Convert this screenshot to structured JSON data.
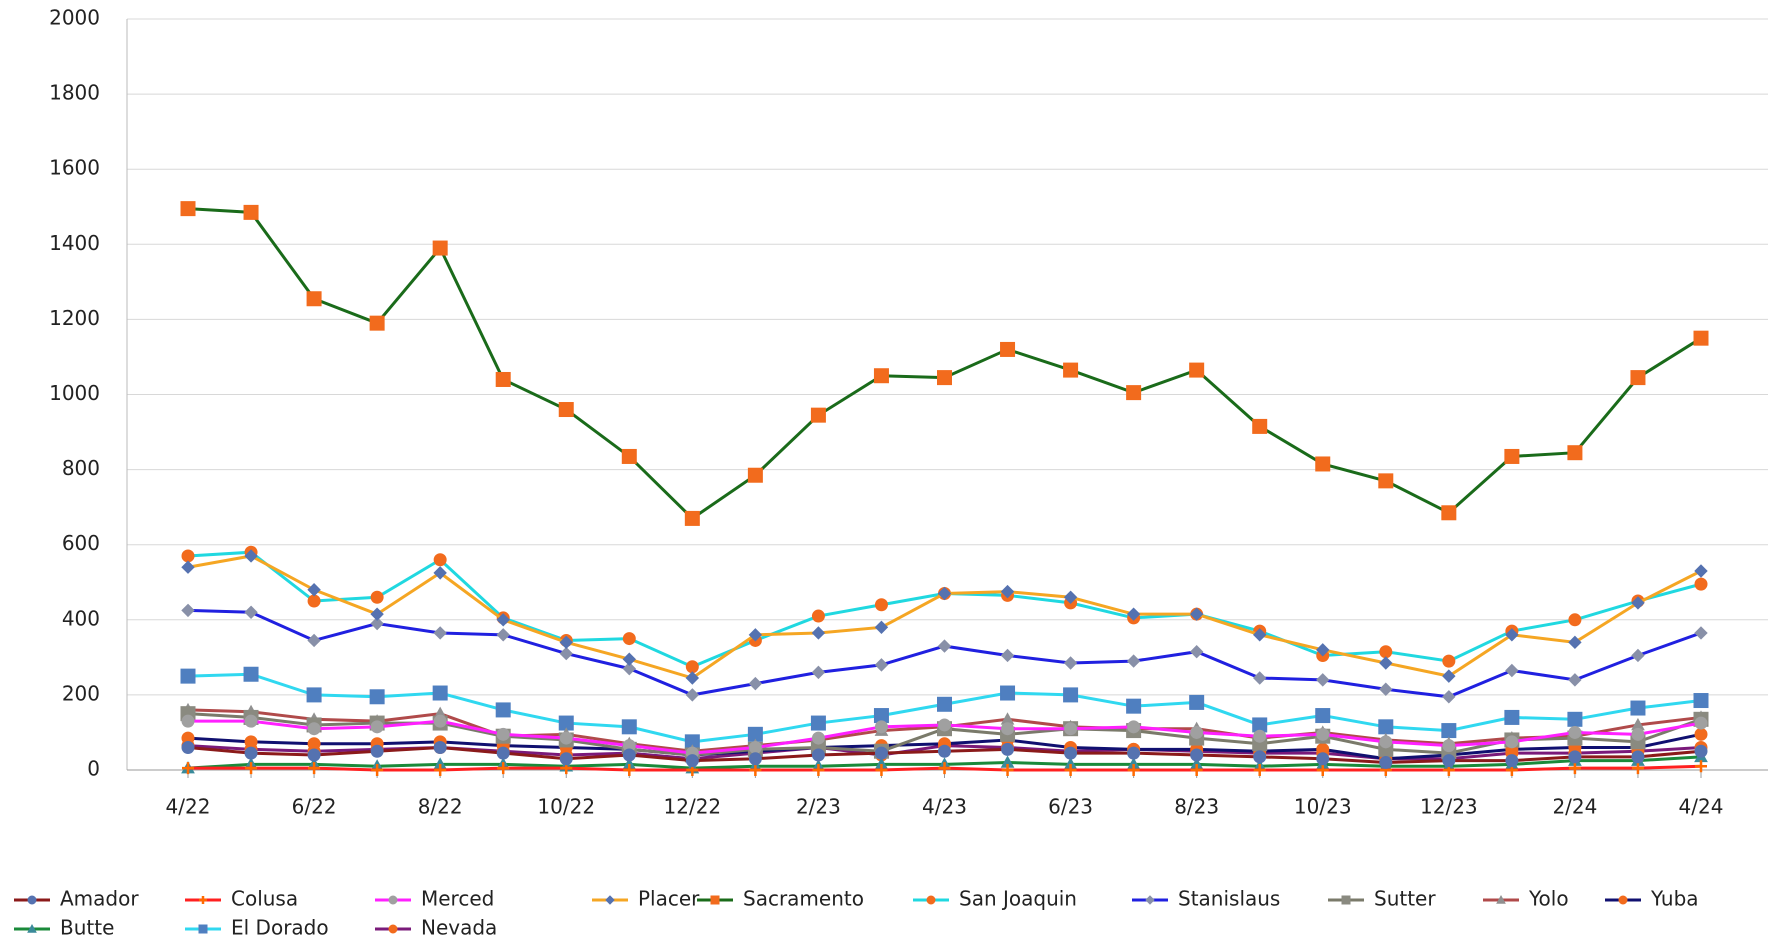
{
  "chart_data": {
    "type": "line",
    "categories": [
      "4/22",
      null,
      "6/22",
      null,
      "8/22",
      null,
      "10/22",
      null,
      "12/22",
      null,
      "2/23",
      null,
      "4/23",
      null,
      "6/23",
      null,
      "8/23",
      null,
      "10/23",
      null,
      "12/23",
      null,
      "2/24",
      null,
      "4/24"
    ],
    "ylim": [
      0,
      2000
    ],
    "yticks": [
      0,
      200,
      400,
      600,
      800,
      1000,
      1200,
      1400,
      1600,
      1800,
      2000
    ],
    "grid": true,
    "legend": "bottom",
    "series": [
      {
        "name": "Amador",
        "color": "#8b1a1a",
        "marker_color": "#5572b0",
        "marker": "circle",
        "values": [
          60,
          45,
          40,
          50,
          60,
          45,
          30,
          40,
          25,
          30,
          40,
          45,
          50,
          55,
          45,
          45,
          40,
          35,
          30,
          20,
          25,
          25,
          35,
          35,
          50
        ]
      },
      {
        "name": "Colusa",
        "color": "#ff2020",
        "marker_color": "#ff6a00",
        "marker": "plus",
        "values": [
          5,
          5,
          5,
          0,
          0,
          5,
          5,
          0,
          0,
          0,
          0,
          0,
          5,
          0,
          0,
          0,
          0,
          0,
          0,
          0,
          0,
          0,
          5,
          5,
          10
        ]
      },
      {
        "name": "Merced",
        "color": "#ff20ff",
        "marker_color": "#a0a0a0",
        "marker": "circle",
        "values": [
          130,
          130,
          110,
          115,
          130,
          95,
          85,
          65,
          45,
          60,
          85,
          115,
          120,
          110,
          110,
          115,
          100,
          90,
          95,
          75,
          65,
          75,
          100,
          95,
          125
        ]
      },
      {
        "name": "Placer",
        "color": "#f5a623",
        "marker_color": "#5572b0",
        "marker": "diamond",
        "values": [
          540,
          570,
          480,
          415,
          525,
          400,
          340,
          295,
          245,
          360,
          365,
          380,
          470,
          475,
          460,
          415,
          415,
          360,
          320,
          285,
          250,
          360,
          340,
          445,
          530
        ]
      },
      {
        "name": "Sacramento",
        "color": "#1a6b1a",
        "marker_color": "#f26b1d",
        "marker": "square",
        "values": [
          1495,
          1485,
          1255,
          1190,
          1390,
          1040,
          960,
          835,
          670,
          785,
          945,
          1050,
          1045,
          1120,
          1065,
          1005,
          1065,
          915,
          815,
          770,
          685,
          835,
          845,
          1045,
          1150
        ]
      },
      {
        "name": "San Joaquin",
        "color": "#20d8e0",
        "marker_color": "#f26b1d",
        "marker": "circle",
        "values": [
          570,
          580,
          450,
          460,
          560,
          405,
          345,
          350,
          275,
          345,
          410,
          440,
          470,
          465,
          445,
          405,
          415,
          370,
          305,
          315,
          290,
          370,
          400,
          450,
          495
        ]
      },
      {
        "name": "Stanislaus",
        "color": "#2020e0",
        "marker_color": "#8890a8",
        "marker": "diamond",
        "values": [
          425,
          420,
          345,
          390,
          365,
          360,
          310,
          270,
          200,
          230,
          260,
          280,
          330,
          305,
          285,
          290,
          315,
          245,
          240,
          215,
          195,
          265,
          240,
          305,
          365
        ]
      },
      {
        "name": "Sutter",
        "color": "#7a7a6a",
        "marker_color": "#8a8a80",
        "marker": "square",
        "values": [
          150,
          140,
          120,
          125,
          125,
          90,
          80,
          55,
          40,
          55,
          60,
          50,
          110,
          95,
          110,
          105,
          85,
          70,
          90,
          55,
          45,
          80,
          85,
          75,
          135
        ]
      },
      {
        "name": "Yolo",
        "color": "#b04a4a",
        "marker_color": "#909090",
        "marker": "triangle",
        "values": [
          160,
          155,
          135,
          130,
          150,
          90,
          95,
          70,
          50,
          65,
          80,
          105,
          115,
          135,
          115,
          110,
          110,
          85,
          100,
          80,
          70,
          85,
          90,
          120,
          140
        ]
      },
      {
        "name": "Yuba",
        "color": "#101070",
        "marker_color": "#f26b1d",
        "marker": "circle",
        "values": [
          85,
          75,
          70,
          70,
          75,
          65,
          60,
          55,
          40,
          50,
          60,
          65,
          70,
          80,
          60,
          55,
          55,
          50,
          55,
          30,
          40,
          55,
          60,
          60,
          95
        ]
      },
      {
        "name": "Butte",
        "color": "#1a8a3a",
        "marker_color": "#3a8a9a",
        "marker": "triangle",
        "values": [
          5,
          15,
          15,
          10,
          15,
          15,
          10,
          15,
          5,
          10,
          10,
          15,
          15,
          20,
          15,
          15,
          15,
          10,
          15,
          10,
          10,
          15,
          25,
          25,
          35
        ]
      },
      {
        "name": "El Dorado",
        "color": "#30d8f0",
        "marker_color": "#4f7fc0",
        "marker": "square",
        "values": [
          250,
          255,
          200,
          195,
          205,
          160,
          125,
          115,
          75,
          95,
          125,
          145,
          175,
          205,
          200,
          170,
          180,
          120,
          145,
          115,
          105,
          140,
          135,
          165,
          185
        ]
      },
      {
        "name": "Nevada",
        "color": "#7a1a7a",
        "marker_color": "#f26b1d",
        "marker": "circle",
        "values": [
          65,
          55,
          50,
          55,
          60,
          50,
          40,
          45,
          30,
          45,
          60,
          40,
          65,
          60,
          50,
          55,
          50,
          45,
          45,
          30,
          30,
          45,
          45,
          50,
          60
        ]
      }
    ]
  }
}
